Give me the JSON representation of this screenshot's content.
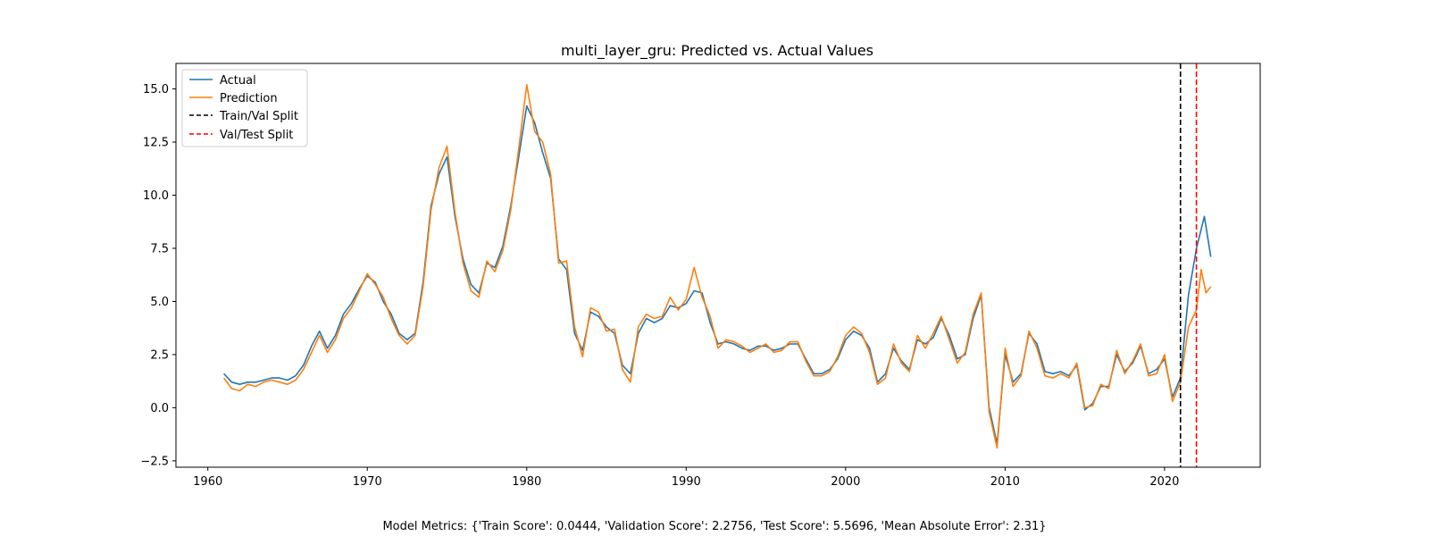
{
  "chart_data": {
    "type": "line",
    "title": "multi_layer_gru: Predicted vs. Actual Values",
    "xlabel": "",
    "ylabel": "",
    "xlim": [
      1958,
      2026
    ],
    "ylim": [
      -2.8,
      16.2
    ],
    "x_ticks": [
      1960,
      1970,
      1980,
      1990,
      2000,
      2010,
      2020
    ],
    "y_ticks": [
      -2.5,
      0.0,
      2.5,
      5.0,
      7.5,
      10.0,
      12.5,
      15.0
    ],
    "y_tick_labels": [
      "−2.5",
      "0.0",
      "2.5",
      "5.0",
      "7.5",
      "10.0",
      "12.5",
      "15.0"
    ],
    "legend_position": "upper-left",
    "grid": false,
    "series": [
      {
        "name": "Actual",
        "color": "#1f77b4",
        "points": [
          [
            1961.0,
            1.6
          ],
          [
            1961.5,
            1.2
          ],
          [
            1962.0,
            1.1
          ],
          [
            1962.5,
            1.2
          ],
          [
            1963.0,
            1.2
          ],
          [
            1963.5,
            1.3
          ],
          [
            1964.0,
            1.4
          ],
          [
            1964.5,
            1.4
          ],
          [
            1965.0,
            1.3
          ],
          [
            1965.5,
            1.5
          ],
          [
            1966.0,
            2.0
          ],
          [
            1966.5,
            2.9
          ],
          [
            1967.0,
            3.6
          ],
          [
            1967.5,
            2.8
          ],
          [
            1968.0,
            3.4
          ],
          [
            1968.5,
            4.4
          ],
          [
            1969.0,
            4.9
          ],
          [
            1969.5,
            5.6
          ],
          [
            1970.0,
            6.2
          ],
          [
            1970.5,
            5.9
          ],
          [
            1971.0,
            5.0
          ],
          [
            1971.5,
            4.4
          ],
          [
            1972.0,
            3.5
          ],
          [
            1972.5,
            3.2
          ],
          [
            1973.0,
            3.5
          ],
          [
            1973.5,
            5.9
          ],
          [
            1974.0,
            9.5
          ],
          [
            1974.5,
            11.0
          ],
          [
            1975.0,
            11.8
          ],
          [
            1975.5,
            9.0
          ],
          [
            1976.0,
            7.0
          ],
          [
            1976.5,
            5.8
          ],
          [
            1977.0,
            5.4
          ],
          [
            1977.5,
            6.8
          ],
          [
            1978.0,
            6.6
          ],
          [
            1978.5,
            7.6
          ],
          [
            1979.0,
            9.5
          ],
          [
            1979.5,
            11.8
          ],
          [
            1980.0,
            14.2
          ],
          [
            1980.5,
            13.4
          ],
          [
            1981.0,
            12.0
          ],
          [
            1981.5,
            10.8
          ],
          [
            1982.0,
            7.0
          ],
          [
            1982.5,
            6.5
          ],
          [
            1983.0,
            3.5
          ],
          [
            1983.5,
            2.7
          ],
          [
            1984.0,
            4.5
          ],
          [
            1984.5,
            4.3
          ],
          [
            1985.0,
            3.8
          ],
          [
            1985.5,
            3.5
          ],
          [
            1986.0,
            2.0
          ],
          [
            1986.5,
            1.6
          ],
          [
            1987.0,
            3.5
          ],
          [
            1987.5,
            4.2
          ],
          [
            1988.0,
            4.0
          ],
          [
            1988.5,
            4.2
          ],
          [
            1989.0,
            4.8
          ],
          [
            1989.5,
            4.7
          ],
          [
            1990.0,
            4.9
          ],
          [
            1990.5,
            5.5
          ],
          [
            1991.0,
            5.4
          ],
          [
            1991.5,
            4.0
          ],
          [
            1992.0,
            3.0
          ],
          [
            1992.5,
            3.1
          ],
          [
            1993.0,
            3.0
          ],
          [
            1993.5,
            2.8
          ],
          [
            1994.0,
            2.7
          ],
          [
            1994.5,
            2.9
          ],
          [
            1995.0,
            2.9
          ],
          [
            1995.5,
            2.7
          ],
          [
            1996.0,
            2.8
          ],
          [
            1996.5,
            3.0
          ],
          [
            1997.0,
            3.0
          ],
          [
            1997.5,
            2.3
          ],
          [
            1998.0,
            1.6
          ],
          [
            1998.5,
            1.6
          ],
          [
            1999.0,
            1.8
          ],
          [
            1999.5,
            2.3
          ],
          [
            2000.0,
            3.2
          ],
          [
            2000.5,
            3.6
          ],
          [
            2001.0,
            3.4
          ],
          [
            2001.5,
            2.8
          ],
          [
            2002.0,
            1.2
          ],
          [
            2002.5,
            1.6
          ],
          [
            2003.0,
            2.8
          ],
          [
            2003.5,
            2.2
          ],
          [
            2004.0,
            1.8
          ],
          [
            2004.5,
            3.2
          ],
          [
            2005.0,
            3.0
          ],
          [
            2005.5,
            3.3
          ],
          [
            2006.0,
            4.2
          ],
          [
            2006.5,
            3.4
          ],
          [
            2007.0,
            2.3
          ],
          [
            2007.5,
            2.5
          ],
          [
            2008.0,
            4.2
          ],
          [
            2008.5,
            5.3
          ],
          [
            2009.0,
            0.0
          ],
          [
            2009.5,
            -1.7
          ],
          [
            2010.0,
            2.5
          ],
          [
            2010.5,
            1.2
          ],
          [
            2011.0,
            1.6
          ],
          [
            2011.5,
            3.5
          ],
          [
            2012.0,
            3.0
          ],
          [
            2012.5,
            1.7
          ],
          [
            2013.0,
            1.6
          ],
          [
            2013.5,
            1.7
          ],
          [
            2014.0,
            1.5
          ],
          [
            2014.5,
            2.0
          ],
          [
            2015.0,
            -0.1
          ],
          [
            2015.5,
            0.2
          ],
          [
            2016.0,
            1.0
          ],
          [
            2016.5,
            1.0
          ],
          [
            2017.0,
            2.5
          ],
          [
            2017.5,
            1.7
          ],
          [
            2018.0,
            2.1
          ],
          [
            2018.5,
            2.9
          ],
          [
            2019.0,
            1.6
          ],
          [
            2019.5,
            1.8
          ],
          [
            2020.0,
            2.3
          ],
          [
            2020.5,
            0.5
          ],
          [
            2021.0,
            1.4
          ],
          [
            2021.5,
            5.3
          ],
          [
            2022.0,
            7.5
          ],
          [
            2022.5,
            9.0
          ],
          [
            2022.9,
            7.1
          ]
        ]
      },
      {
        "name": "Prediction",
        "color": "#ff7f0e",
        "points": [
          [
            1961.0,
            1.4
          ],
          [
            1961.5,
            0.9
          ],
          [
            1962.0,
            0.8
          ],
          [
            1962.5,
            1.1
          ],
          [
            1963.0,
            1.0
          ],
          [
            1963.5,
            1.2
          ],
          [
            1964.0,
            1.3
          ],
          [
            1964.5,
            1.2
          ],
          [
            1965.0,
            1.1
          ],
          [
            1965.5,
            1.3
          ],
          [
            1966.0,
            1.8
          ],
          [
            1966.5,
            2.6
          ],
          [
            1967.0,
            3.4
          ],
          [
            1967.5,
            2.6
          ],
          [
            1968.0,
            3.2
          ],
          [
            1968.5,
            4.2
          ],
          [
            1969.0,
            4.7
          ],
          [
            1969.5,
            5.5
          ],
          [
            1970.0,
            6.3
          ],
          [
            1970.5,
            5.8
          ],
          [
            1971.0,
            5.2
          ],
          [
            1971.5,
            4.2
          ],
          [
            1972.0,
            3.4
          ],
          [
            1972.5,
            3.0
          ],
          [
            1973.0,
            3.4
          ],
          [
            1973.5,
            5.7
          ],
          [
            1974.0,
            9.3
          ],
          [
            1974.5,
            11.3
          ],
          [
            1975.0,
            12.3
          ],
          [
            1975.5,
            9.2
          ],
          [
            1976.0,
            6.8
          ],
          [
            1976.5,
            5.5
          ],
          [
            1977.0,
            5.2
          ],
          [
            1977.5,
            6.9
          ],
          [
            1978.0,
            6.4
          ],
          [
            1978.5,
            7.4
          ],
          [
            1979.0,
            9.3
          ],
          [
            1979.5,
            12.2
          ],
          [
            1980.0,
            15.2
          ],
          [
            1980.5,
            13.0
          ],
          [
            1981.0,
            12.5
          ],
          [
            1981.5,
            11.0
          ],
          [
            1982.0,
            6.8
          ],
          [
            1982.5,
            6.9
          ],
          [
            1983.0,
            3.8
          ],
          [
            1983.5,
            2.4
          ],
          [
            1984.0,
            4.7
          ],
          [
            1984.5,
            4.5
          ],
          [
            1985.0,
            3.6
          ],
          [
            1985.5,
            3.7
          ],
          [
            1986.0,
            1.8
          ],
          [
            1986.5,
            1.2
          ],
          [
            1987.0,
            3.8
          ],
          [
            1987.5,
            4.4
          ],
          [
            1988.0,
            4.2
          ],
          [
            1988.5,
            4.3
          ],
          [
            1989.0,
            5.2
          ],
          [
            1989.5,
            4.6
          ],
          [
            1990.0,
            5.1
          ],
          [
            1990.5,
            6.6
          ],
          [
            1991.0,
            5.2
          ],
          [
            1991.5,
            4.3
          ],
          [
            1992.0,
            2.8
          ],
          [
            1992.5,
            3.2
          ],
          [
            1993.0,
            3.1
          ],
          [
            1993.5,
            2.9
          ],
          [
            1994.0,
            2.6
          ],
          [
            1994.5,
            2.8
          ],
          [
            1995.0,
            3.0
          ],
          [
            1995.5,
            2.6
          ],
          [
            1996.0,
            2.7
          ],
          [
            1996.5,
            3.1
          ],
          [
            1997.0,
            3.1
          ],
          [
            1997.5,
            2.2
          ],
          [
            1998.0,
            1.5
          ],
          [
            1998.5,
            1.5
          ],
          [
            1999.0,
            1.7
          ],
          [
            1999.5,
            2.4
          ],
          [
            2000.0,
            3.4
          ],
          [
            2000.5,
            3.8
          ],
          [
            2001.0,
            3.5
          ],
          [
            2001.5,
            2.6
          ],
          [
            2002.0,
            1.1
          ],
          [
            2002.5,
            1.4
          ],
          [
            2003.0,
            3.0
          ],
          [
            2003.5,
            2.1
          ],
          [
            2004.0,
            1.7
          ],
          [
            2004.5,
            3.4
          ],
          [
            2005.0,
            2.8
          ],
          [
            2005.5,
            3.5
          ],
          [
            2006.0,
            4.3
          ],
          [
            2006.5,
            3.2
          ],
          [
            2007.0,
            2.1
          ],
          [
            2007.5,
            2.6
          ],
          [
            2008.0,
            4.4
          ],
          [
            2008.5,
            5.4
          ],
          [
            2009.0,
            -0.2
          ],
          [
            2009.5,
            -1.9
          ],
          [
            2010.0,
            2.8
          ],
          [
            2010.5,
            1.0
          ],
          [
            2011.0,
            1.5
          ],
          [
            2011.5,
            3.6
          ],
          [
            2012.0,
            2.8
          ],
          [
            2012.5,
            1.5
          ],
          [
            2013.0,
            1.4
          ],
          [
            2013.5,
            1.6
          ],
          [
            2014.0,
            1.4
          ],
          [
            2014.5,
            2.1
          ],
          [
            2015.0,
            0.0
          ],
          [
            2015.5,
            0.1
          ],
          [
            2016.0,
            1.1
          ],
          [
            2016.5,
            0.9
          ],
          [
            2017.0,
            2.7
          ],
          [
            2017.5,
            1.6
          ],
          [
            2018.0,
            2.2
          ],
          [
            2018.5,
            3.0
          ],
          [
            2019.0,
            1.5
          ],
          [
            2019.5,
            1.6
          ],
          [
            2020.0,
            2.5
          ],
          [
            2020.5,
            0.3
          ],
          [
            2021.0,
            1.2
          ],
          [
            2021.5,
            3.8
          ],
          [
            2022.0,
            4.6
          ],
          [
            2022.3,
            6.5
          ],
          [
            2022.6,
            5.4
          ],
          [
            2022.9,
            5.7
          ]
        ]
      }
    ],
    "vlines": [
      {
        "name": "Train/Val Split",
        "x": 2021.0,
        "color": "#000000",
        "style": "dashed"
      },
      {
        "name": "Val/Test Split",
        "x": 2022.0,
        "color": "#ff0000",
        "style": "dashed"
      }
    ]
  },
  "footer": {
    "text": "Model Metrics: {'Train Score': 0.0444, 'Validation Score': 2.2756, 'Test Score': 5.5696, 'Mean Absolute Error': 2.31}"
  }
}
